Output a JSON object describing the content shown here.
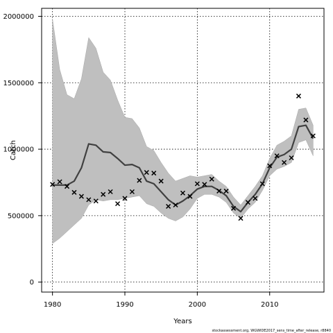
{
  "chart_data": {
    "type": "line",
    "xlabel": "Years",
    "ylabel": "Catch",
    "footnote": "stockassessment.org, WGWIDE2017_sens_time_after_release, r8840",
    "xlim": [
      1978.5,
      2017.5
    ],
    "ylim": [
      -75000,
      2060000
    ],
    "x_ticks": [
      1980,
      1990,
      2000,
      2010
    ],
    "y_ticks": [
      0,
      500000,
      1000000,
      1500000,
      2000000
    ],
    "y_tick_labels": [
      "0",
      "500000",
      "1000000",
      "1500000",
      "2000000"
    ],
    "grid": true,
    "colors": {
      "band": "#bfbfbf",
      "band_edge": "#a6a6a6",
      "line": "#404040",
      "obs": "#000000",
      "grid": "#000000"
    },
    "series": [
      {
        "kind": "ribbon",
        "x": [
          1980,
          1981,
          1982,
          1983,
          1984,
          1985,
          1986,
          1987,
          1988,
          1989,
          1990,
          1991,
          1992,
          1993,
          1994,
          1995,
          1996,
          1997,
          1998,
          1999,
          2000,
          2001,
          2002,
          2003,
          2004,
          2005,
          2006,
          2007,
          2008,
          2009,
          2010,
          2011,
          2012,
          2013,
          2014,
          2015,
          2016
        ],
        "lower": [
          290000,
          330000,
          380000,
          430000,
          480000,
          580000,
          620000,
          610000,
          620000,
          620000,
          630000,
          640000,
          650000,
          590000,
          570000,
          520000,
          480000,
          460000,
          490000,
          550000,
          630000,
          660000,
          660000,
          640000,
          600000,
          520000,
          480000,
          550000,
          600000,
          690000,
          800000,
          850000,
          870000,
          900000,
          1050000,
          1070000,
          950000
        ],
        "upper": [
          1980000,
          1600000,
          1410000,
          1380000,
          1530000,
          1840000,
          1760000,
          1580000,
          1520000,
          1370000,
          1240000,
          1230000,
          1160000,
          1020000,
          990000,
          900000,
          820000,
          760000,
          780000,
          800000,
          790000,
          800000,
          810000,
          760000,
          720000,
          640000,
          580000,
          650000,
          720000,
          800000,
          930000,
          1030000,
          1060000,
          1100000,
          1300000,
          1310000,
          1180000
        ]
      },
      {
        "kind": "line",
        "x": [
          1980,
          1981,
          1982,
          1983,
          1984,
          1985,
          1986,
          1987,
          1988,
          1989,
          1990,
          1991,
          1992,
          1993,
          1994,
          1995,
          1996,
          1997,
          1998,
          1999,
          2000,
          2001,
          2002,
          2003,
          2004,
          2005,
          2006,
          2007,
          2008,
          2009,
          2010,
          2011,
          2012,
          2013,
          2014,
          2015,
          2016
        ],
        "y": [
          730000,
          730000,
          730000,
          760000,
          860000,
          1040000,
          1030000,
          980000,
          975000,
          930000,
          880000,
          885000,
          860000,
          760000,
          740000,
          680000,
          620000,
          580000,
          610000,
          650000,
          700000,
          720000,
          720000,
          690000,
          650000,
          570000,
          530000,
          600000,
          660000,
          740000,
          860000,
          940000,
          960000,
          1000000,
          1170000,
          1180000,
          1080000
        ]
      },
      {
        "kind": "points",
        "marker": "x",
        "x": [
          1980,
          1981,
          1982,
          1983,
          1984,
          1985,
          1986,
          1987,
          1988,
          1989,
          1990,
          1991,
          1992,
          1993,
          1994,
          1995,
          1996,
          1997,
          1998,
          1999,
          2000,
          2001,
          2002,
          2003,
          2004,
          2005,
          2006,
          2007,
          2008,
          2009,
          2010,
          2011,
          2012,
          2013,
          2014,
          2015,
          2016
        ],
        "y": [
          735000,
          755000,
          720000,
          675000,
          645000,
          620000,
          610000,
          660000,
          680000,
          590000,
          630000,
          680000,
          765000,
          825000,
          820000,
          760000,
          570000,
          580000,
          670000,
          645000,
          740000,
          735000,
          775000,
          685000,
          685000,
          555000,
          480000,
          600000,
          630000,
          740000,
          875000,
          950000,
          900000,
          935000,
          1400000,
          1220000,
          1100000
        ]
      }
    ]
  }
}
